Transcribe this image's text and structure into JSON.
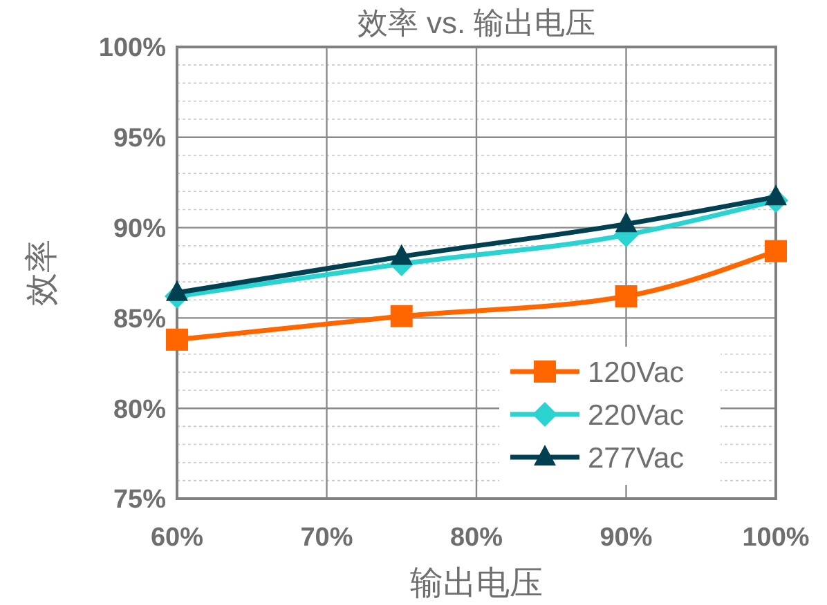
{
  "chart_data": {
    "type": "line",
    "title": "效率 vs. 输出电压",
    "xlabel": "输出电压",
    "ylabel": "效率",
    "x": [
      60,
      75,
      90,
      100
    ],
    "series": [
      {
        "name": "120Vac",
        "color": "#ff6600",
        "marker": "square",
        "values": [
          83.8,
          85.1,
          86.2,
          88.7
        ]
      },
      {
        "name": "220Vac",
        "color": "#2ad3d0",
        "marker": "diamond",
        "values": [
          86.2,
          88.0,
          89.6,
          91.5
        ]
      },
      {
        "name": "277Vac",
        "color": "#004050",
        "marker": "triangle",
        "values": [
          86.4,
          88.4,
          90.2,
          91.7
        ]
      }
    ],
    "xlim": [
      60,
      100
    ],
    "xticks": [
      {
        "value": 60,
        "label": "60%"
      },
      {
        "value": 70,
        "label": "70%"
      },
      {
        "value": 80,
        "label": "80%"
      },
      {
        "value": 90,
        "label": "90%"
      },
      {
        "value": 100,
        "label": "100%"
      }
    ],
    "ylim": [
      75,
      100
    ],
    "yticks": [
      {
        "value": 75,
        "label": "75%"
      },
      {
        "value": 76,
        "label": null
      },
      {
        "value": 77,
        "label": null
      },
      {
        "value": 78,
        "label": null
      },
      {
        "value": 79,
        "label": null
      },
      {
        "value": 80,
        "label": "80%"
      },
      {
        "value": 81,
        "label": null
      },
      {
        "value": 82,
        "label": null
      },
      {
        "value": 83,
        "label": null
      },
      {
        "value": 84,
        "label": null
      },
      {
        "value": 85,
        "label": "85%"
      },
      {
        "value": 86,
        "label": null
      },
      {
        "value": 87,
        "label": null
      },
      {
        "value": 88,
        "label": null
      },
      {
        "value": 89,
        "label": null
      },
      {
        "value": 90,
        "label": "90%"
      },
      {
        "value": 91,
        "label": null
      },
      {
        "value": 92,
        "label": null
      },
      {
        "value": 93,
        "label": null
      },
      {
        "value": 94,
        "label": null
      },
      {
        "value": 95,
        "label": "95%"
      },
      {
        "value": 96,
        "label": null
      },
      {
        "value": 97,
        "label": null
      },
      {
        "value": 98,
        "label": null
      },
      {
        "value": 99,
        "label": null
      },
      {
        "value": 100,
        "label": "100%"
      }
    ],
    "grid": true,
    "legend": "bottom right",
    "line_style": "solid"
  }
}
